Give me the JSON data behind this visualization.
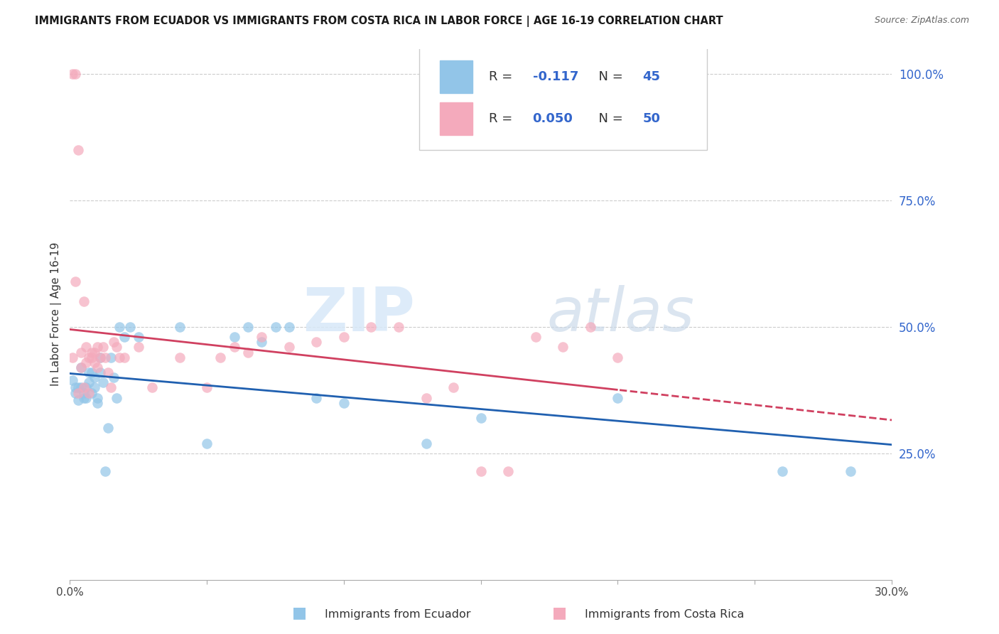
{
  "title": "IMMIGRANTS FROM ECUADOR VS IMMIGRANTS FROM COSTA RICA IN LABOR FORCE | AGE 16-19 CORRELATION CHART",
  "source": "Source: ZipAtlas.com",
  "ylabel": "In Labor Force | Age 16-19",
  "xlim": [
    0.0,
    0.3
  ],
  "ylim": [
    0.0,
    1.05
  ],
  "yticks": [
    0.25,
    0.5,
    0.75,
    1.0
  ],
  "ytick_labels": [
    "25.0%",
    "50.0%",
    "75.0%",
    "100.0%"
  ],
  "xticks": [
    0.0,
    0.05,
    0.1,
    0.15,
    0.2,
    0.25,
    0.3
  ],
  "xtick_labels": [
    "0.0%",
    "",
    "",
    "",
    "",
    "",
    "30.0%"
  ],
  "watermark_zip": "ZIP",
  "watermark_atlas": "atlas",
  "ecuador_color": "#92C5E8",
  "costarica_color": "#F4AABC",
  "ecuador_R": "-0.117",
  "ecuador_N": "45",
  "costarica_R": "0.050",
  "costarica_N": "50",
  "ecuador_line_color": "#2060B0",
  "costarica_line_color": "#D04060",
  "text_blue": "#3366CC",
  "text_black": "#333333",
  "ecuador_x": [
    0.001,
    0.002,
    0.002,
    0.003,
    0.003,
    0.004,
    0.004,
    0.005,
    0.005,
    0.006,
    0.006,
    0.007,
    0.007,
    0.008,
    0.008,
    0.009,
    0.009,
    0.01,
    0.01,
    0.011,
    0.011,
    0.012,
    0.013,
    0.014,
    0.015,
    0.016,
    0.017,
    0.018,
    0.02,
    0.022,
    0.025,
    0.04,
    0.05,
    0.06,
    0.065,
    0.07,
    0.075,
    0.08,
    0.09,
    0.1,
    0.13,
    0.15,
    0.2,
    0.26,
    0.285
  ],
  "ecuador_y": [
    0.395,
    0.38,
    0.37,
    0.38,
    0.355,
    0.42,
    0.38,
    0.37,
    0.36,
    0.38,
    0.36,
    0.41,
    0.39,
    0.37,
    0.41,
    0.4,
    0.38,
    0.36,
    0.35,
    0.41,
    0.44,
    0.39,
    0.215,
    0.3,
    0.44,
    0.4,
    0.36,
    0.5,
    0.48,
    0.5,
    0.48,
    0.5,
    0.27,
    0.48,
    0.5,
    0.47,
    0.5,
    0.5,
    0.36,
    0.35,
    0.27,
    0.32,
    0.36,
    0.215,
    0.215
  ],
  "costarica_x": [
    0.001,
    0.001,
    0.002,
    0.002,
    0.003,
    0.003,
    0.004,
    0.004,
    0.005,
    0.005,
    0.006,
    0.006,
    0.007,
    0.007,
    0.008,
    0.008,
    0.009,
    0.009,
    0.01,
    0.01,
    0.011,
    0.012,
    0.013,
    0.014,
    0.015,
    0.016,
    0.017,
    0.018,
    0.02,
    0.025,
    0.03,
    0.04,
    0.05,
    0.055,
    0.06,
    0.065,
    0.07,
    0.08,
    0.09,
    0.1,
    0.11,
    0.12,
    0.13,
    0.14,
    0.15,
    0.16,
    0.17,
    0.18,
    0.19,
    0.2
  ],
  "costarica_y": [
    0.44,
    1.0,
    1.0,
    0.59,
    0.85,
    0.37,
    0.45,
    0.42,
    0.55,
    0.38,
    0.46,
    0.43,
    0.44,
    0.37,
    0.45,
    0.44,
    0.45,
    0.43,
    0.46,
    0.42,
    0.44,
    0.46,
    0.44,
    0.41,
    0.38,
    0.47,
    0.46,
    0.44,
    0.44,
    0.46,
    0.38,
    0.44,
    0.38,
    0.44,
    0.46,
    0.45,
    0.48,
    0.46,
    0.47,
    0.48,
    0.5,
    0.5,
    0.36,
    0.38,
    0.215,
    0.215,
    0.48,
    0.46,
    0.5,
    0.44
  ]
}
